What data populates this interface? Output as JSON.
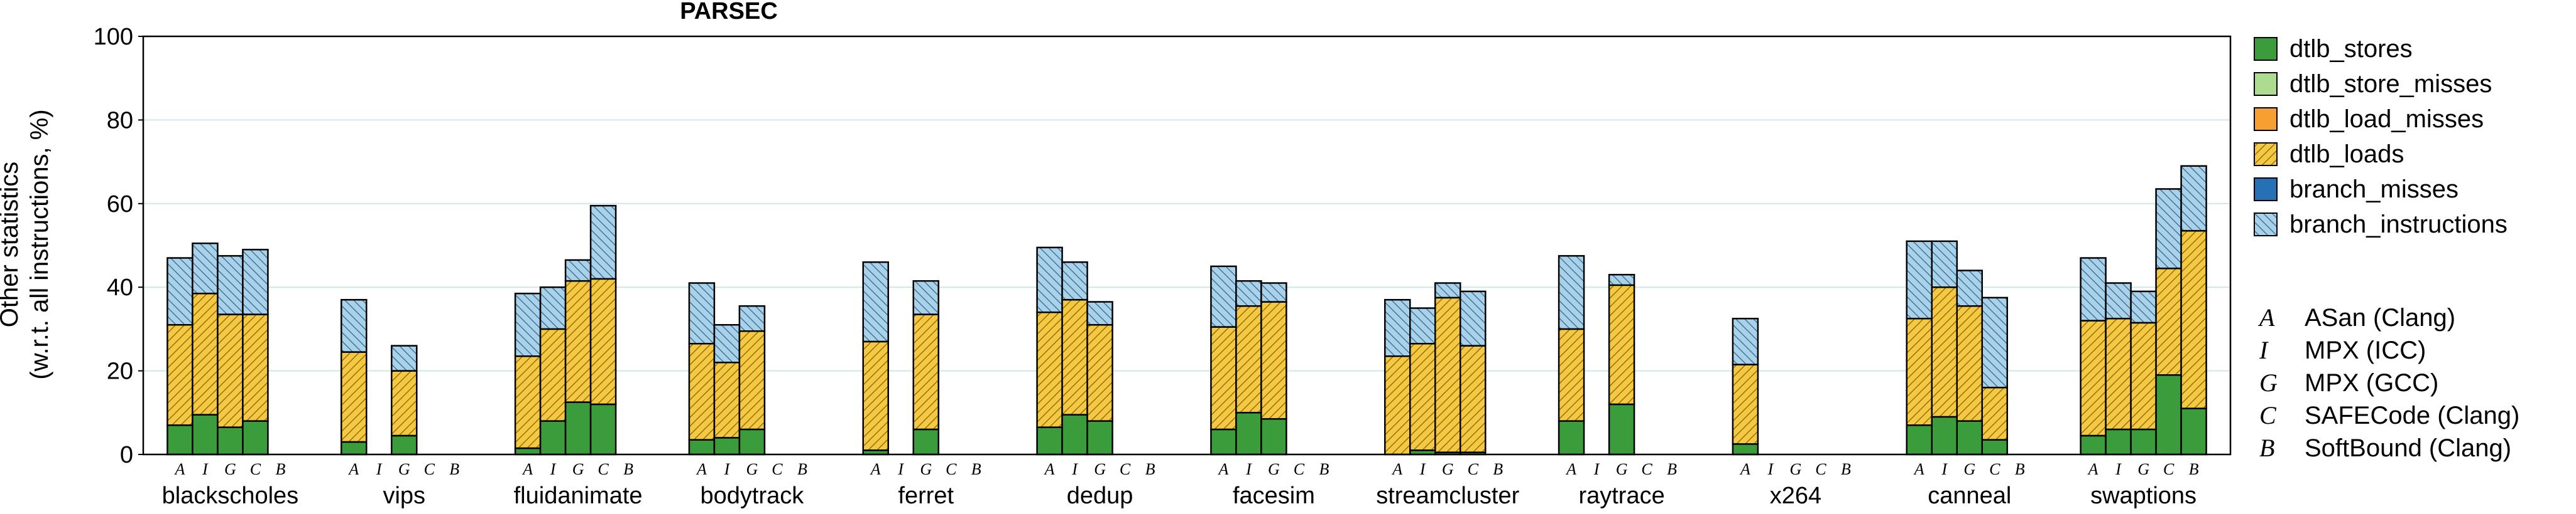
{
  "chart_data": {
    "type": "bar",
    "stacked": true,
    "title": "PARSEC",
    "ylabel_line1": "Other statistics",
    "ylabel_line2": "(w.r.t. all instructions, %)",
    "ylim": [
      0,
      100
    ],
    "yticks": [
      0,
      20,
      40,
      60,
      80,
      100
    ],
    "grid": "horizontal",
    "legend_position": "right",
    "configs": [
      "A",
      "I",
      "G",
      "C",
      "B"
    ],
    "config_legend": [
      {
        "letter": "A",
        "label": "ASan (Clang)"
      },
      {
        "letter": "I",
        "label": "MPX (ICC)"
      },
      {
        "letter": "G",
        "label": "MPX (GCC)"
      },
      {
        "letter": "C",
        "label": "SAFECode (Clang)"
      },
      {
        "letter": "B",
        "label": "SoftBound (Clang)"
      }
    ],
    "series": [
      {
        "key": "dtlb_stores",
        "name": "dtlb_stores",
        "color": "#3a9c3a",
        "hatch": false
      },
      {
        "key": "dtlb_store_misses",
        "name": "dtlb_store_misses",
        "color": "#addb8f",
        "hatch": false
      },
      {
        "key": "dtlb_load_misses",
        "name": "dtlb_load_misses",
        "color": "#f5a030",
        "hatch": false
      },
      {
        "key": "dtlb_loads",
        "name": "dtlb_loads",
        "color": "#f5c842",
        "hatch": true
      },
      {
        "key": "branch_misses",
        "name": "branch_misses",
        "color": "#2670b5",
        "hatch": false
      },
      {
        "key": "branch_instructions",
        "name": "branch_instructions",
        "color": "#a9d2ea",
        "hatch": true
      }
    ],
    "categories": [
      "blackscholes",
      "vips",
      "fluidanimate",
      "bodytrack",
      "ferret",
      "dedup",
      "facesim",
      "streamcluster",
      "raytrace",
      "x264",
      "canneal",
      "swaptions"
    ],
    "data": [
      {
        "benchmark": "blackscholes",
        "bars": [
          [
            7,
            0,
            0,
            24,
            0,
            16
          ],
          [
            9.5,
            0,
            0,
            29,
            0,
            12
          ],
          [
            6.5,
            0,
            0,
            27,
            0,
            14
          ],
          [
            8,
            0,
            0,
            25.5,
            0,
            15.5
          ],
          null
        ]
      },
      {
        "benchmark": "vips",
        "bars": [
          [
            3,
            0,
            0,
            21.5,
            0,
            12.5
          ],
          null,
          [
            4.5,
            0,
            0,
            15.5,
            0,
            6
          ],
          null,
          null
        ]
      },
      {
        "benchmark": "fluidanimate",
        "bars": [
          [
            1.5,
            0,
            0,
            22,
            0,
            15
          ],
          [
            8,
            0,
            0,
            22,
            0,
            10
          ],
          [
            12.5,
            0,
            0,
            29,
            0,
            5
          ],
          [
            12,
            0,
            0,
            30,
            0,
            17.5
          ],
          null
        ]
      },
      {
        "benchmark": "bodytrack",
        "bars": [
          [
            3.5,
            0,
            0,
            23,
            0,
            14.5
          ],
          [
            4,
            0,
            0,
            18,
            0,
            9
          ],
          [
            6,
            0,
            0,
            23.5,
            0,
            6
          ],
          null,
          null
        ]
      },
      {
        "benchmark": "ferret",
        "bars": [
          [
            1,
            0,
            0,
            26,
            0,
            19
          ],
          null,
          [
            6,
            0,
            0,
            27.5,
            0,
            8
          ],
          null,
          null
        ]
      },
      {
        "benchmark": "dedup",
        "bars": [
          [
            6.5,
            0,
            0,
            27.5,
            0,
            15.5
          ],
          [
            9.5,
            0,
            0,
            27.5,
            0,
            9
          ],
          [
            8,
            0,
            0,
            23,
            0,
            5.5
          ],
          null,
          null
        ]
      },
      {
        "benchmark": "facesim",
        "bars": [
          [
            6,
            0,
            0,
            24.5,
            0,
            14.5
          ],
          [
            10,
            0,
            0,
            25.5,
            0,
            6
          ],
          [
            8.5,
            0,
            0,
            28,
            0,
            4.5
          ],
          null,
          null
        ]
      },
      {
        "benchmark": "streamcluster",
        "bars": [
          [
            0,
            0,
            0,
            23.5,
            0,
            13.5
          ],
          [
            1,
            0,
            0,
            25.5,
            0,
            8.5
          ],
          [
            0.5,
            0,
            0,
            37,
            0,
            3.5
          ],
          [
            0.5,
            0,
            0,
            25.5,
            0,
            13
          ],
          null
        ]
      },
      {
        "benchmark": "raytrace",
        "bars": [
          [
            8,
            0,
            0,
            22,
            0,
            17.5
          ],
          null,
          [
            12,
            0,
            0,
            28.5,
            0,
            2.5
          ],
          null,
          null
        ]
      },
      {
        "benchmark": "x264",
        "bars": [
          [
            2.5,
            0,
            0,
            19,
            0,
            11
          ],
          null,
          null,
          null,
          null
        ]
      },
      {
        "benchmark": "canneal",
        "bars": [
          [
            7,
            0,
            0,
            25.5,
            0,
            18.5
          ],
          [
            9,
            0,
            0,
            31,
            0,
            11
          ],
          [
            8,
            0,
            0,
            27.5,
            0,
            8.5
          ],
          [
            3.5,
            0,
            0,
            12.5,
            0,
            21.5
          ],
          null
        ]
      },
      {
        "benchmark": "swaptions",
        "bars": [
          [
            4.5,
            0,
            0,
            27.5,
            0,
            15
          ],
          [
            6,
            0,
            0,
            26.5,
            0,
            8.5
          ],
          [
            6,
            0,
            0,
            25.5,
            0,
            7.5
          ],
          [
            19,
            0,
            0,
            25.5,
            0,
            19
          ],
          [
            11,
            0,
            0,
            42.5,
            0,
            15.5
          ]
        ]
      }
    ]
  }
}
